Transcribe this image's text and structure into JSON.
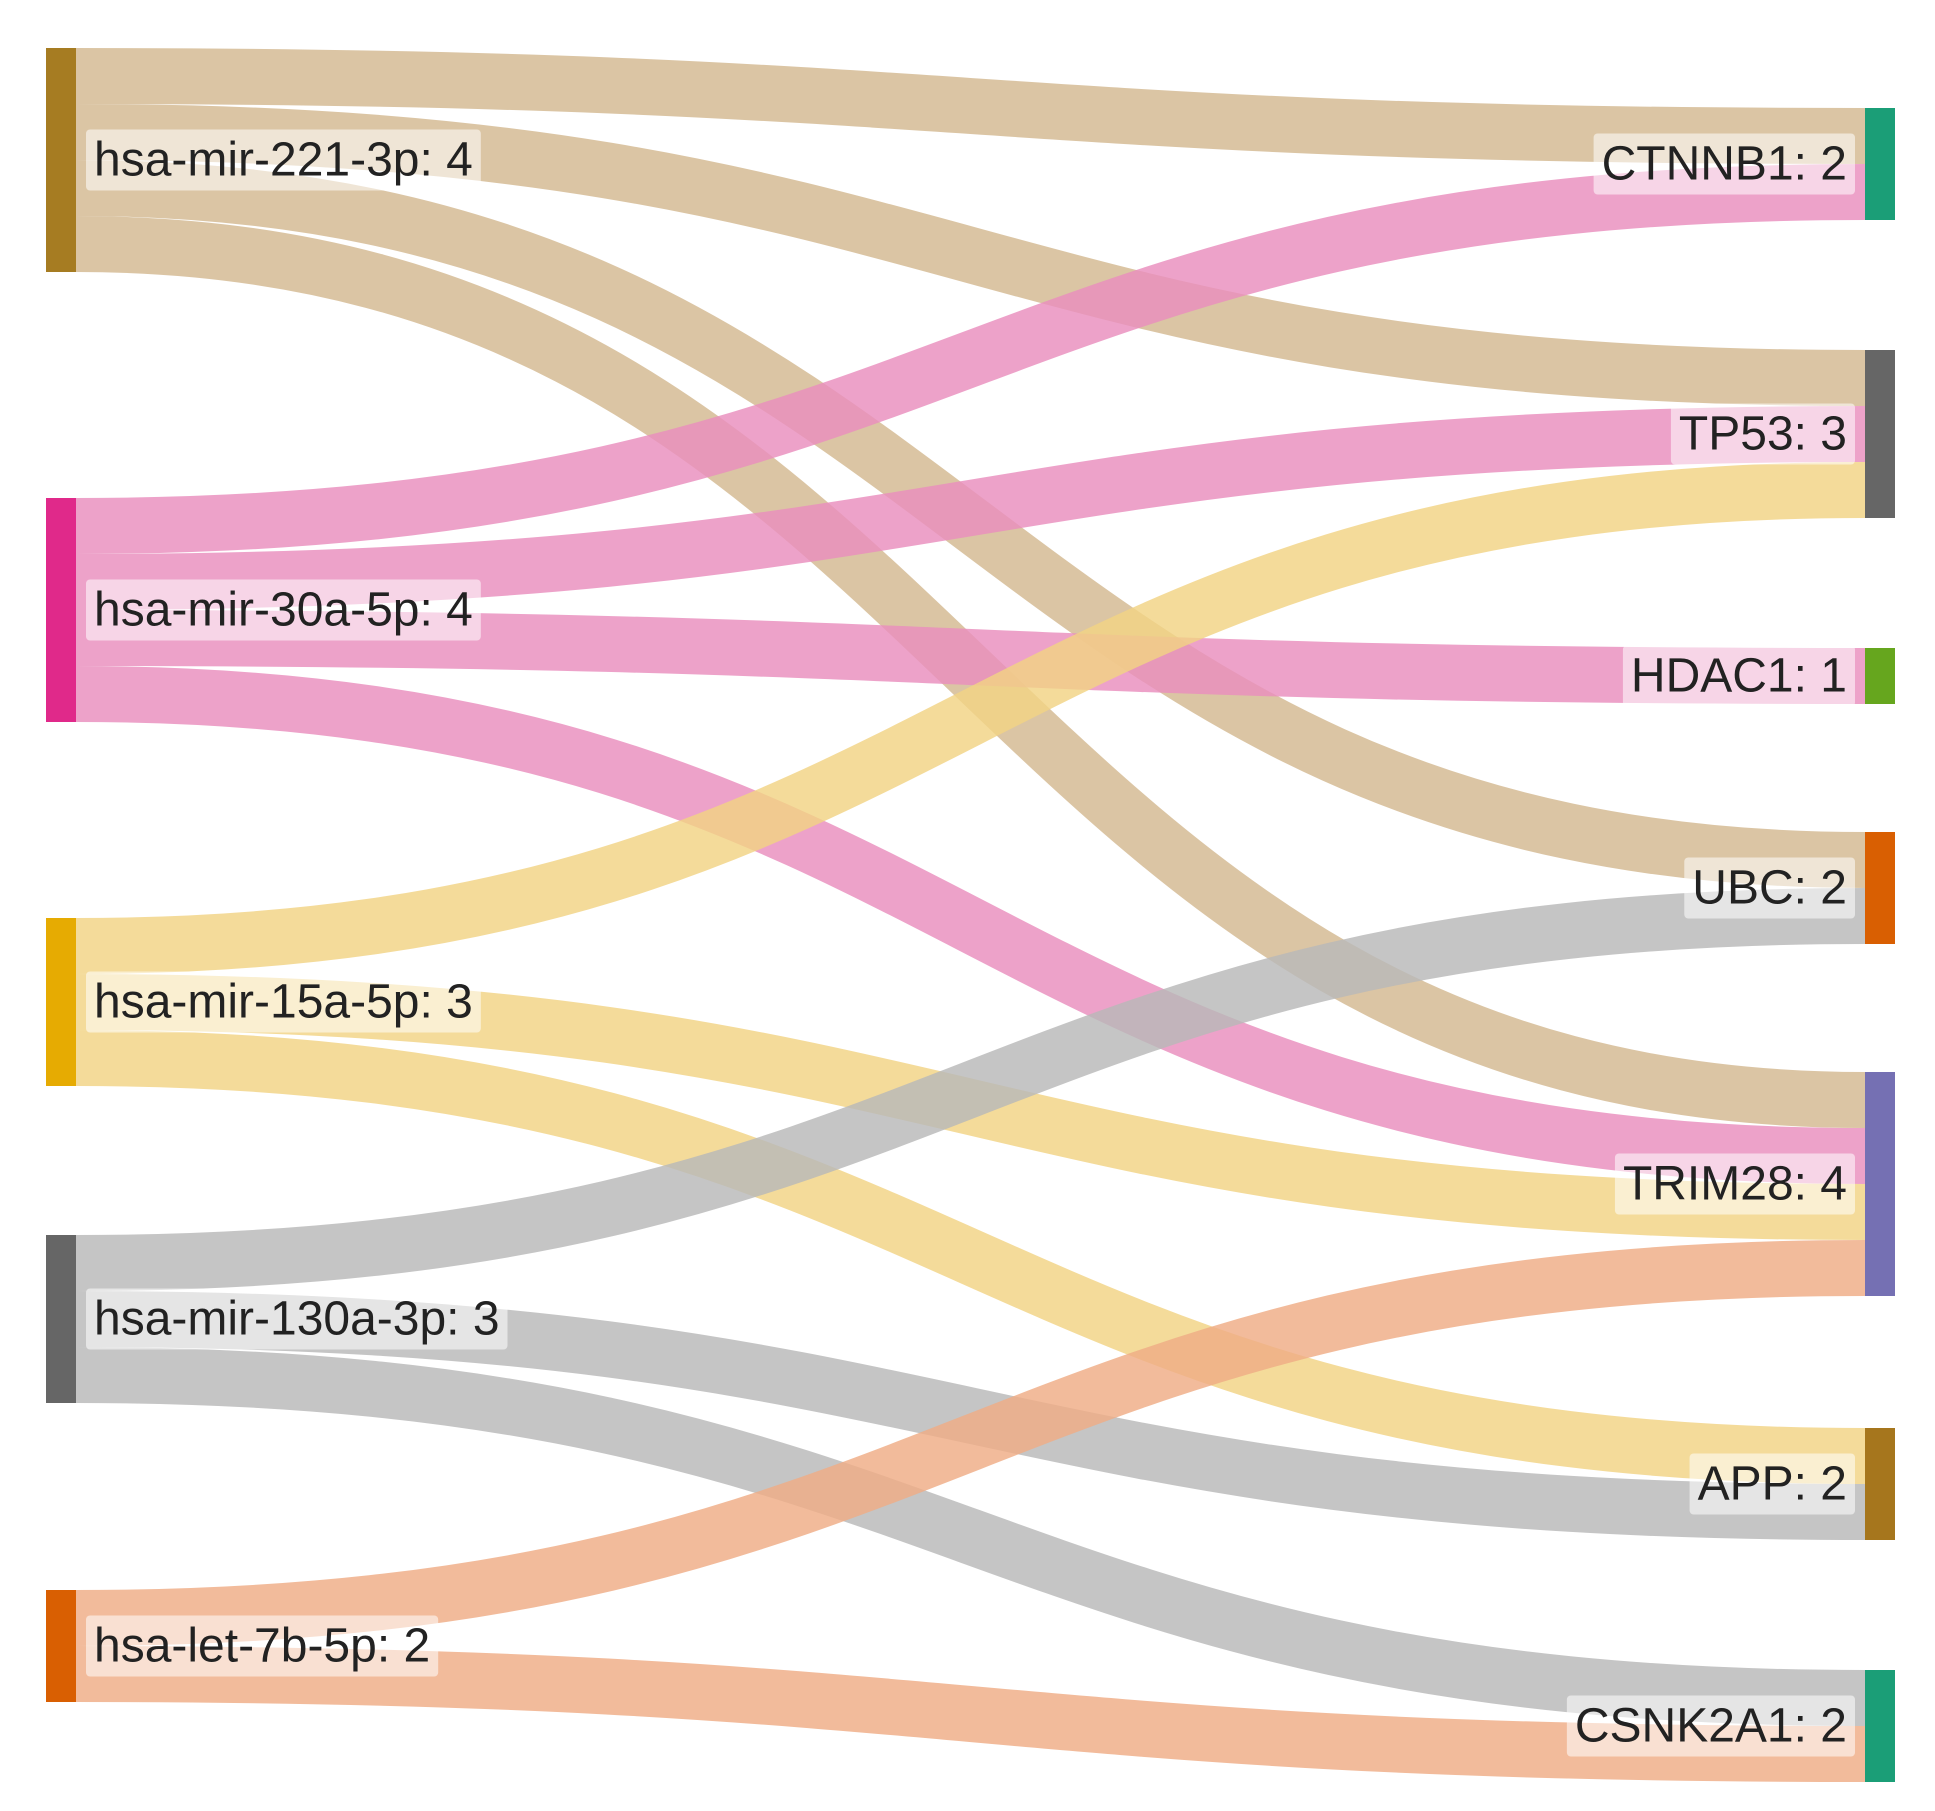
{
  "sources": [
    {
      "id": "hsa-mir-221-3p",
      "label": "hsa-mir-221-3p: 4",
      "color": "#a67c22",
      "link_color": "#d3b890"
    },
    {
      "id": "hsa-mir-30a-5p",
      "label": "hsa-mir-30a-5p: 4",
      "color": "#e0298a",
      "link_color": "#e98dbd"
    },
    {
      "id": "hsa-mir-15a-5p",
      "label": "hsa-mir-15a-5p: 3",
      "color": "#e6ab02",
      "link_color": "#f1d384"
    },
    {
      "id": "hsa-mir-130a-3p",
      "label": "hsa-mir-130a-3p: 3",
      "color": "#666666",
      "link_color": "#b8b8b8"
    },
    {
      "id": "hsa-let-7b-5p",
      "label": "hsa-let-7b-5p: 2",
      "color": "#d95f02",
      "link_color": "#efac85"
    }
  ],
  "targets": [
    {
      "id": "CTNNB1",
      "label": "CTNNB1: 2",
      "color": "#1b9e77"
    },
    {
      "id": "TP53",
      "label": "TP53: 3",
      "color": "#666666"
    },
    {
      "id": "HDAC1",
      "label": "HDAC1: 1",
      "color": "#66a61e"
    },
    {
      "id": "UBC",
      "label": "UBC: 2",
      "color": "#d95f02"
    },
    {
      "id": "TRIM28",
      "label": "TRIM28: 4",
      "color": "#7570b3"
    },
    {
      "id": "APP",
      "label": "APP: 2",
      "color": "#a6761d"
    },
    {
      "id": "CSNK2A1",
      "label": "CSNK2A1: 2",
      "color": "#1b9e77"
    }
  ],
  "links": [
    {
      "source": "hsa-mir-221-3p",
      "target": "CTNNB1",
      "value": 1
    },
    {
      "source": "hsa-mir-221-3p",
      "target": "TP53",
      "value": 1
    },
    {
      "source": "hsa-mir-221-3p",
      "target": "UBC",
      "value": 1
    },
    {
      "source": "hsa-mir-221-3p",
      "target": "TRIM28",
      "value": 1
    },
    {
      "source": "hsa-mir-30a-5p",
      "target": "CTNNB1",
      "value": 1
    },
    {
      "source": "hsa-mir-30a-5p",
      "target": "TP53",
      "value": 1
    },
    {
      "source": "hsa-mir-30a-5p",
      "target": "HDAC1",
      "value": 1
    },
    {
      "source": "hsa-mir-30a-5p",
      "target": "TRIM28",
      "value": 1
    },
    {
      "source": "hsa-mir-15a-5p",
      "target": "TP53",
      "value": 1
    },
    {
      "source": "hsa-mir-15a-5p",
      "target": "TRIM28",
      "value": 1
    },
    {
      "source": "hsa-mir-15a-5p",
      "target": "APP",
      "value": 1
    },
    {
      "source": "hsa-mir-130a-3p",
      "target": "UBC",
      "value": 1
    },
    {
      "source": "hsa-mir-130a-3p",
      "target": "APP",
      "value": 1
    },
    {
      "source": "hsa-mir-130a-3p",
      "target": "CSNK2A1",
      "value": 1
    },
    {
      "source": "hsa-let-7b-5p",
      "target": "TRIM28",
      "value": 1
    },
    {
      "source": "hsa-let-7b-5p",
      "target": "CSNK2A1",
      "value": 1
    }
  ]
}
